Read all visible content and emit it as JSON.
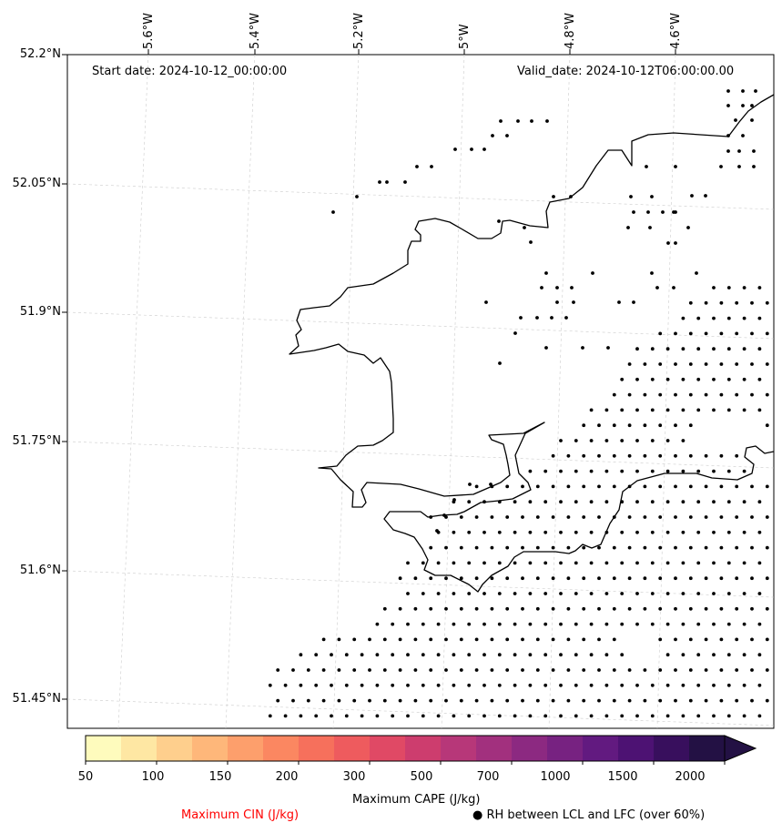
{
  "map": {
    "start_date": "Start date: 2024-10-12_00:00:00",
    "valid_date": "Valid_date: 2024-10-12T06:00:00.00",
    "lon_labels": [
      "5.6°W",
      "5.4°W",
      "5.2°W",
      "5°W",
      "4.8°W",
      "4.6°W"
    ],
    "lat_labels": [
      "52.2°N",
      "52.05°N",
      "51.9°N",
      "51.75°N",
      "51.6°N",
      "51.45°N"
    ],
    "coast_color": "#000000",
    "gridline_color": "#cccccc",
    "dot_color": "#000000"
  },
  "colorbar": {
    "label": "Maximum CAPE (J/kg)",
    "ticks": [
      "50",
      "100",
      "150",
      "200",
      "300",
      "500",
      "700",
      "1000",
      "1500",
      "2000"
    ],
    "levels": [
      50,
      75,
      100,
      125,
      150,
      175,
      200,
      250,
      300,
      400,
      500,
      600,
      700,
      850,
      1000,
      1250,
      1500,
      1750,
      2000
    ],
    "colors": [
      "#fefbbd",
      "#fee7a3",
      "#fecf8d",
      "#feb77a",
      "#fd9f6c",
      "#fb8761",
      "#f6705c",
      "#ee5b5e",
      "#e04965",
      "#cd3d6e",
      "#b73779",
      "#a2307e",
      "#8c2981",
      "#772281",
      "#621a80",
      "#4d1273",
      "#380f5d",
      "#231144"
    ],
    "extend": "max"
  },
  "legend": {
    "cin_label": "Maximum CIN (J/kg)",
    "cin_color": "#ff0000",
    "rh_marker": "●",
    "rh_label": "RH between LCL and LFC (over 60%)"
  }
}
